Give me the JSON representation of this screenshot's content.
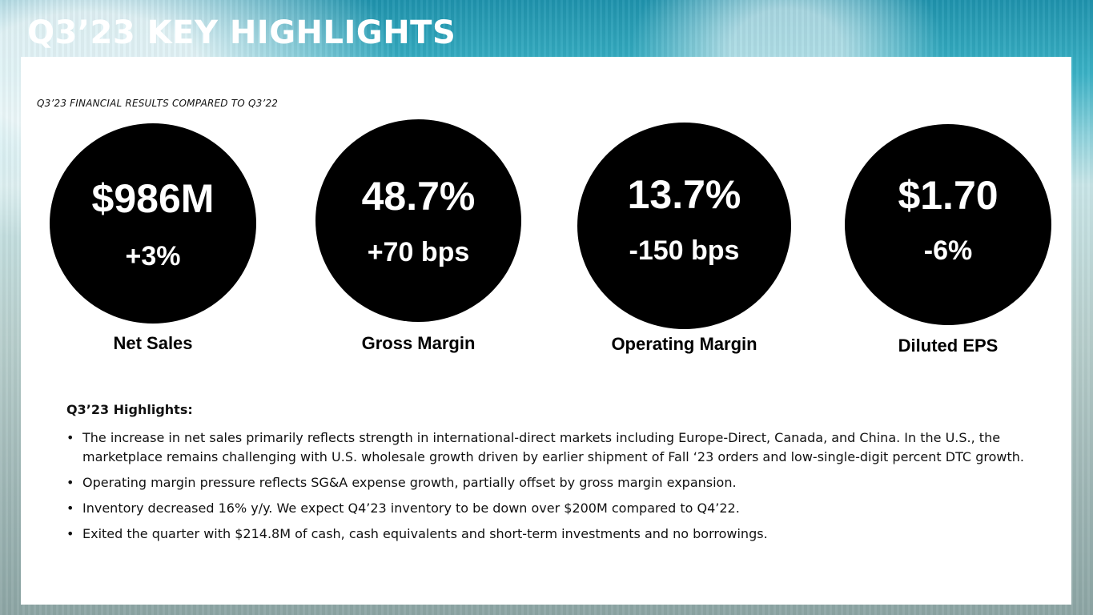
{
  "title": "Q3’23 KEY HIGHLIGHTS",
  "subtitle": "Q3’23 FINANCIAL RESULTS COMPARED TO Q3’22",
  "metrics": [
    {
      "value": "$986M",
      "change": "+3%",
      "label": "Net Sales"
    },
    {
      "value": "48.7%",
      "change": "+70 bps",
      "label": "Gross Margin"
    },
    {
      "value": "13.7%",
      "change": "-150 bps",
      "label": "Operating Margin"
    },
    {
      "value": "$1.70",
      "change": "-6%",
      "label": "Diluted EPS"
    }
  ],
  "highlights": {
    "heading": "Q3’23 Highlights:",
    "bullet_symbol": "•",
    "items": [
      "The increase in net sales primarily reflects strength in international-direct markets including Europe-Direct, Canada, and China. In the U.S., the marketplace remains challenging with U.S. wholesale growth driven by earlier shipment of Fall ‘23 orders and low-single-digit percent DTC growth.",
      "Operating margin pressure reflects SG&A expense growth, partially offset by gross margin expansion.",
      "Inventory decreased 16% y/y. We expect Q4’23 inventory to be down over $200M compared to Q4’22.",
      "Exited the quarter with $214.8M of cash, cash equivalents and short-term investments and no borrowings."
    ]
  },
  "colors": {
    "card_background": "#ffffff",
    "circle_fill": "#000000",
    "circle_text": "#ffffff",
    "title_text": "#ffffff"
  }
}
